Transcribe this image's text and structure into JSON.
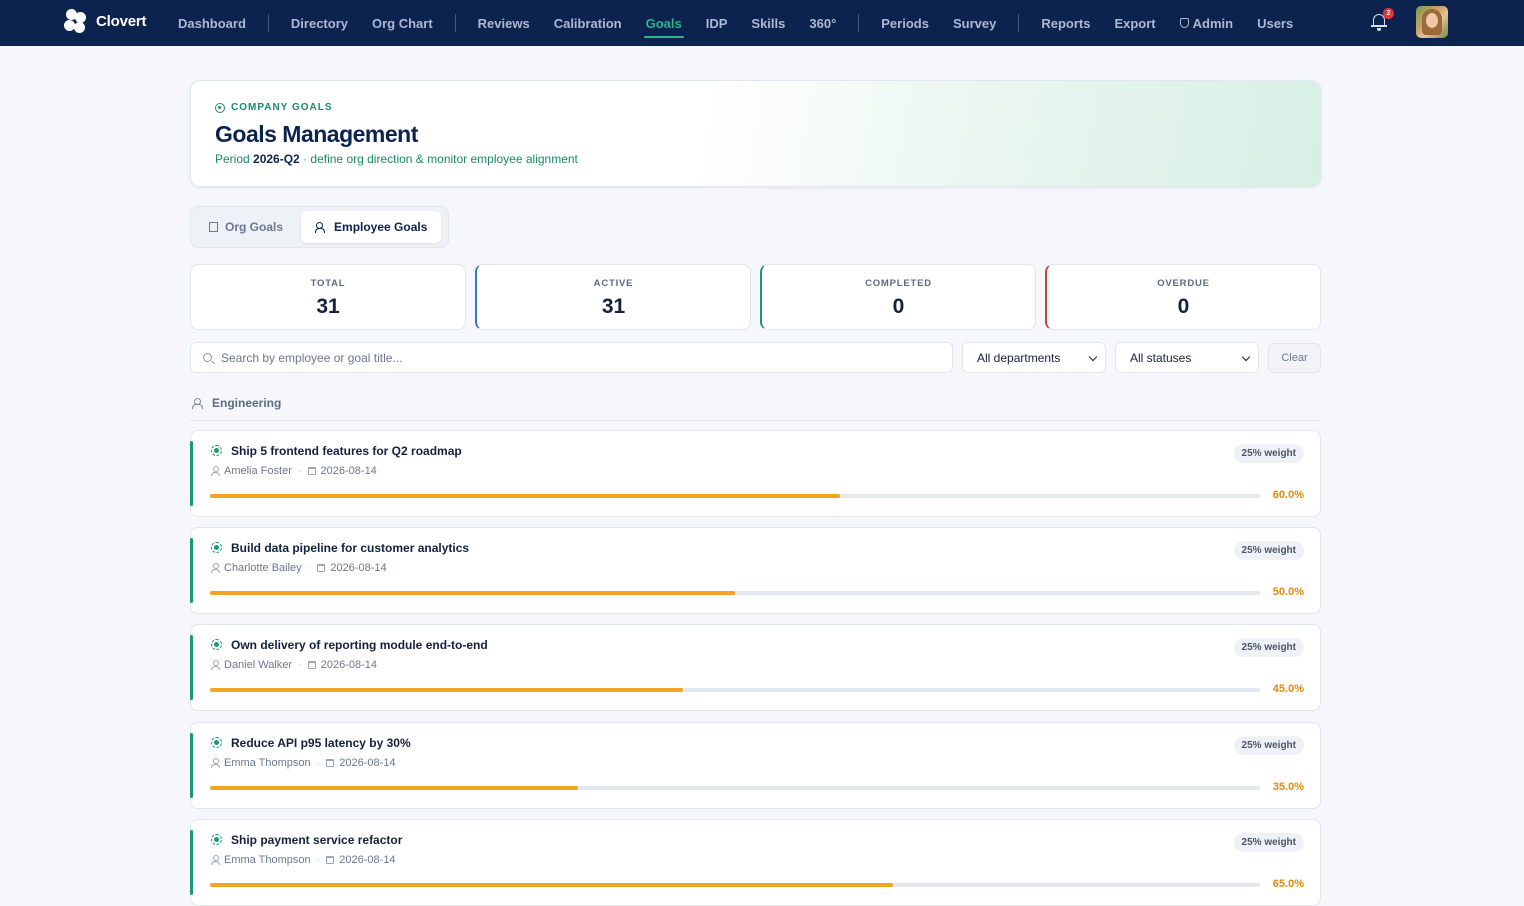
{
  "app": {
    "name": "Clovert"
  },
  "nav": {
    "items": [
      "Dashboard",
      "Directory",
      "Org Chart",
      "Reviews",
      "Calibration",
      "Goals",
      "IDP",
      "Skills",
      "360°",
      "Periods",
      "Survey",
      "Reports",
      "Export",
      "Admin",
      "Users"
    ],
    "active": "Goals",
    "notifications_count": "2"
  },
  "header": {
    "eyebrow": "COMPANY GOALS",
    "title": "Goals Management",
    "period_prefix": "Period",
    "period": "2026-Q2",
    "description": "· define org direction & monitor employee alignment"
  },
  "tabs": [
    {
      "label": "Org Goals",
      "icon": "building-icon"
    },
    {
      "label": "Employee Goals",
      "icon": "people-icon"
    }
  ],
  "active_tab": "Employee Goals",
  "stats": [
    {
      "label": "TOTAL",
      "value": "31"
    },
    {
      "label": "ACTIVE",
      "value": "31"
    },
    {
      "label": "COMPLETED",
      "value": "0"
    },
    {
      "label": "OVERDUE",
      "value": "0"
    }
  ],
  "filters": {
    "search_placeholder": "Search by employee or goal title...",
    "department": "All departments",
    "status": "All statuses",
    "clear_label": "Clear"
  },
  "department": {
    "name": "Engineering"
  },
  "goals": [
    {
      "title": "Ship 5 frontend features for Q2 roadmap",
      "owner": "Amelia Foster",
      "due": "2026-08-14",
      "weight": "25% weight",
      "progress": 60.0,
      "progress_label": "60.0%"
    },
    {
      "title": "Build data pipeline for customer analytics",
      "owner": "Charlotte Bailey",
      "due": "2026-08-14",
      "weight": "25% weight",
      "progress": 50.0,
      "progress_label": "50.0%"
    },
    {
      "title": "Own delivery of reporting module end-to-end",
      "owner": "Daniel Walker",
      "due": "2026-08-14",
      "weight": "25% weight",
      "progress": 45.0,
      "progress_label": "45.0%"
    },
    {
      "title": "Reduce API p95 latency by 30%",
      "owner": "Emma Thompson",
      "due": "2026-08-14",
      "weight": "25% weight",
      "progress": 35.0,
      "progress_label": "35.0%"
    },
    {
      "title": "Ship payment service refactor",
      "owner": "Emma Thompson",
      "due": "2026-08-14",
      "weight": "25% weight",
      "progress": 65.0,
      "progress_label": "65.0%"
    }
  ],
  "colors": {
    "nav_bg": "#0c2350",
    "accent_green": "#1b9a70",
    "progress_orange": "#f2a51f",
    "active_border": "#3b6fd8",
    "overdue_border": "#d93a3a"
  }
}
